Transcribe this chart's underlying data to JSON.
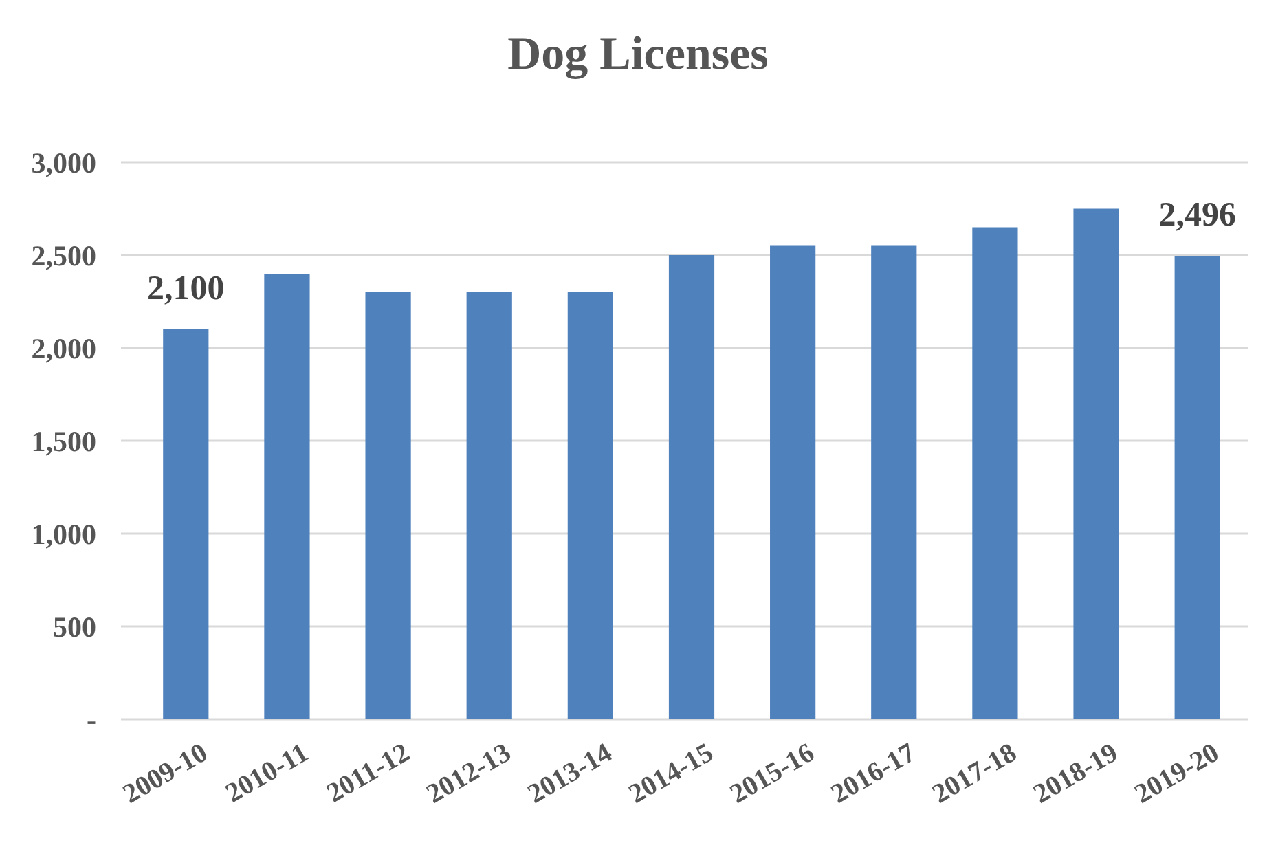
{
  "chart_data": {
    "type": "bar",
    "title": "Dog Licenses",
    "categories": [
      "2009-10",
      "2010-11",
      "2011-12",
      "2012-13",
      "2013-14",
      "2014-15",
      "2015-16",
      "2016-17",
      "2017-18",
      "2018-19",
      "2019-20"
    ],
    "values": [
      2100,
      2400,
      2300,
      2300,
      2300,
      2500,
      2550,
      2550,
      2650,
      2750,
      2496
    ],
    "value_labels": [
      "2,100",
      null,
      null,
      null,
      null,
      null,
      null,
      null,
      null,
      null,
      "2,496"
    ],
    "color": "#4f81bd",
    "ylim": [
      0,
      3000
    ],
    "yticks": [
      {
        "value": 0,
        "label": "-"
      },
      500,
      {
        "value": 1000,
        "label": "1,000"
      },
      {
        "value": 1500,
        "label": "1,500"
      },
      {
        "value": 2000,
        "label": "2,000"
      },
      {
        "value": 2500,
        "label": "2,500"
      },
      {
        "value": 3000,
        "label": "3,000"
      }
    ],
    "grid": "y"
  }
}
